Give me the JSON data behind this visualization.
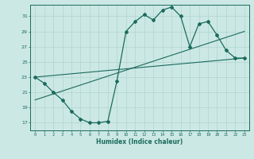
{
  "xlabel": "Humidex (Indice chaleur)",
  "background_color": "#cce8e4",
  "line_color": "#1a6b5e",
  "grid_color": "#afd4cf",
  "xlim": [
    -0.5,
    23.5
  ],
  "ylim": [
    16,
    32.5
  ],
  "yticks": [
    17,
    19,
    21,
    23,
    25,
    27,
    29,
    31
  ],
  "xticks": [
    0,
    1,
    2,
    3,
    4,
    5,
    6,
    7,
    8,
    9,
    10,
    11,
    12,
    13,
    14,
    15,
    16,
    17,
    18,
    19,
    20,
    21,
    22,
    23
  ],
  "series1_x": [
    0,
    1,
    2,
    3,
    4,
    5,
    6,
    7,
    8,
    9,
    10,
    11,
    12,
    13,
    14,
    15,
    16,
    17,
    18,
    19,
    20,
    21,
    22,
    23
  ],
  "series1_y": [
    23,
    22.2,
    21,
    20,
    18.5,
    17.5,
    17,
    17,
    17.2,
    22.5,
    29,
    30.3,
    31.2,
    30.5,
    31.8,
    32.2,
    31,
    27,
    30,
    30.3,
    28.5,
    26.5,
    25.5,
    25.5
  ],
  "line1_x": [
    0,
    23
  ],
  "line1_y": [
    23.0,
    25.5
  ],
  "line2_x": [
    0,
    23
  ],
  "line2_y": [
    20.0,
    29.0
  ]
}
